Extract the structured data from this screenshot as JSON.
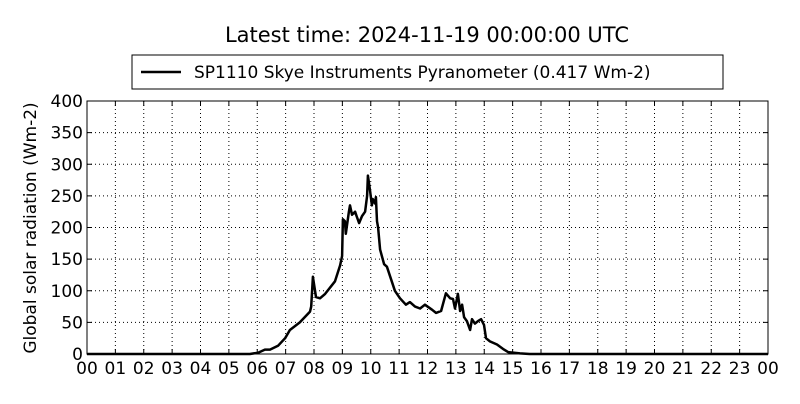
{
  "chart_data": {
    "type": "line",
    "title": "Latest time: 2024-11-19 00:00:00 UTC",
    "xlabel": "",
    "ylabel": "Global solar radiation (Wm-2)",
    "xlim": [
      0,
      24
    ],
    "ylim": [
      0,
      400
    ],
    "grid": true,
    "legend_placement": "top-center",
    "x_tick_values": [
      0,
      1,
      2,
      3,
      4,
      5,
      6,
      7,
      8,
      9,
      10,
      11,
      12,
      13,
      14,
      15,
      16,
      17,
      18,
      19,
      20,
      21,
      22,
      23,
      24
    ],
    "x_tick_labels": [
      "00",
      "01",
      "02",
      "03",
      "04",
      "05",
      "06",
      "07",
      "08",
      "09",
      "10",
      "11",
      "12",
      "13",
      "14",
      "15",
      "16",
      "17",
      "18",
      "19",
      "20",
      "21",
      "22",
      "23",
      "00"
    ],
    "y_ticks": [
      0,
      50,
      100,
      150,
      200,
      250,
      300,
      350,
      400
    ],
    "series": [
      {
        "name": "SP1110 Skye Instruments Pyranometer (0.417 Wm-2)",
        "color": "#000000",
        "x": [
          0,
          5.74,
          6.03,
          6.27,
          6.45,
          6.73,
          6.98,
          7.15,
          7.5,
          7.86,
          7.9,
          7.96,
          8.07,
          8.21,
          8.39,
          8.74,
          8.92,
          8.99,
          9.02,
          9.09,
          9.12,
          9.23,
          9.27,
          9.34,
          9.45,
          9.5,
          9.59,
          9.69,
          9.8,
          9.87,
          9.9,
          9.97,
          10.04,
          10.07,
          10.15,
          10.18,
          10.22,
          10.26,
          10.33,
          10.47,
          10.57,
          10.85,
          11.03,
          11.24,
          11.38,
          11.56,
          11.74,
          11.91,
          12.16,
          12.3,
          12.48,
          12.65,
          12.8,
          12.9,
          12.97,
          13.07,
          13.15,
          13.22,
          13.29,
          13.39,
          13.5,
          13.57,
          13.67,
          13.78,
          13.89,
          13.99,
          14.06,
          14.2,
          14.45,
          14.66,
          14.84,
          15.26,
          15.6,
          24
        ],
        "y": [
          0,
          0,
          2,
          7,
          7,
          13,
          25,
          38,
          50,
          67,
          75,
          122,
          90,
          88,
          95,
          115,
          140,
          155,
          213,
          210,
          190,
          225,
          235,
          220,
          225,
          218,
          207,
          218,
          225,
          250,
          282,
          260,
          235,
          245,
          238,
          248,
          210,
          200,
          165,
          142,
          138,
          100,
          88,
          78,
          82,
          75,
          72,
          78,
          70,
          65,
          68,
          96,
          88,
          87,
          72,
          95,
          68,
          78,
          58,
          52,
          38,
          55,
          48,
          52,
          55,
          46,
          25,
          20,
          15,
          8,
          3,
          1,
          0,
          0
        ]
      }
    ]
  }
}
